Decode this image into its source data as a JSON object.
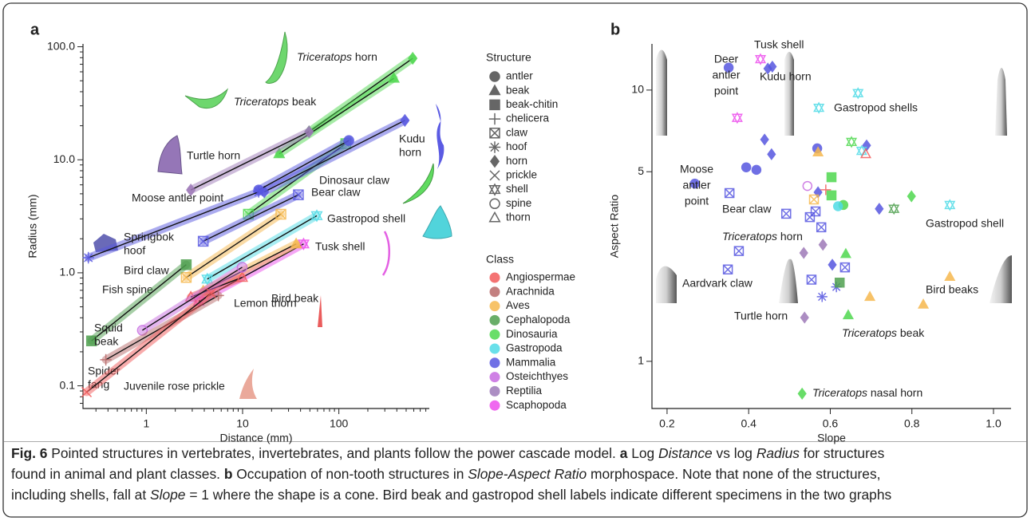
{
  "chart_data": [
    {
      "type": "scatter-fit",
      "panel": "a",
      "x_label": "Distance (mm)",
      "y_label": "Radius (mm)",
      "xscale": "log",
      "yscale": "log",
      "xlim": [
        0.22,
        870
      ],
      "ylim": [
        0.063,
        106
      ],
      "xticks": [
        1,
        10,
        100
      ],
      "xminorticks": [
        0.3,
        0.4,
        0.5,
        0.6,
        0.7,
        0.8,
        0.9,
        2,
        3,
        4,
        5,
        6,
        7,
        8,
        9,
        20,
        30,
        40,
        50,
        60,
        70,
        80,
        90,
        200,
        300,
        400,
        500,
        600,
        700,
        800
      ],
      "yticks": [
        {
          "value": 0.1,
          "label": "0.1"
        },
        {
          "value": 1,
          "label": "1.0"
        },
        {
          "value": 10,
          "label": "10.0"
        },
        {
          "value": 100,
          "label": "100.0"
        }
      ],
      "yminorticks": [
        0.07,
        0.08,
        0.09,
        0.2,
        0.3,
        0.4,
        0.5,
        0.6,
        0.7,
        0.8,
        0.9,
        2,
        3,
        4,
        5,
        6,
        7,
        8,
        9,
        20,
        30,
        40,
        50,
        60,
        70,
        80,
        90
      ],
      "structure_legend_title": "Structure",
      "structures": [
        {
          "name": "antler",
          "marker": "circle"
        },
        {
          "name": "beak",
          "marker": "triangle"
        },
        {
          "name": "beak-chitin",
          "marker": "square"
        },
        {
          "name": "chelicera",
          "marker": "plus"
        },
        {
          "name": "claw",
          "marker": "square-x"
        },
        {
          "name": "hoof",
          "marker": "asterisk"
        },
        {
          "name": "horn",
          "marker": "diamond"
        },
        {
          "name": "prickle",
          "marker": "x"
        },
        {
          "name": "shell",
          "marker": "hexagram"
        },
        {
          "name": "spine",
          "marker": "circle-open"
        },
        {
          "name": "thorn",
          "marker": "triangle-open"
        }
      ],
      "class_legend_title": "Class",
      "classes": [
        {
          "name": "Angiospermae",
          "color": "#f25a5a"
        },
        {
          "name": "Arachnida",
          "color": "#b86a6a"
        },
        {
          "name": "Aves",
          "color": "#f6b84e"
        },
        {
          "name": "Cephalopoda",
          "color": "#4fa04f"
        },
        {
          "name": "Dinosauria",
          "color": "#4fd84f"
        },
        {
          "name": "Gastropoda",
          "color": "#4fdbe6"
        },
        {
          "name": "Mammalia",
          "color": "#5757e0"
        },
        {
          "name": "Osteichthyes",
          "color": "#c76be0"
        },
        {
          "name": "Reptilia",
          "color": "#9e7ab8"
        },
        {
          "name": "Scaphopoda",
          "color": "#ec4fec"
        }
      ],
      "specimens": [
        {
          "label": [
            [
              {
                "text": "Triceratops",
                "italic": true
              },
              {
                "text": " horn"
              }
            ]
          ],
          "class": "Dinosauria",
          "structure": "horn",
          "x": [
            49,
            585
          ],
          "y": [
            17.7,
            79
          ]
        },
        {
          "label": [
            [
              {
                "text": "Triceratops",
                "italic": true
              },
              {
                "text": " beak"
              }
            ]
          ],
          "class": "Dinosauria",
          "structure": "beak",
          "x": [
            24,
            372
          ],
          "y": [
            11.3,
            52.6
          ]
        },
        {
          "label": [
            "Dinosaur claw"
          ],
          "class": "Dinosauria",
          "structure": "claw",
          "x": [
            11.5,
            118
          ],
          "y": [
            3.3,
            13.9
          ]
        },
        {
          "label": [
            "Turtle horn"
          ],
          "class": "Reptilia",
          "structure": "horn",
          "x": [
            2.9,
            49
          ],
          "y": [
            5.4,
            17.7
          ]
        },
        {
          "label": [
            "Kudu",
            "horn"
          ],
          "class": "Mammalia",
          "structure": "horn",
          "x": [
            16.8,
            485
          ],
          "y": [
            5.2,
            22.3
          ]
        },
        {
          "label": [
            "Moose antler point"
          ],
          "class": "Mammalia",
          "structure": "antler",
          "x": [
            14.7,
            127
          ],
          "y": [
            5.4,
            14.8
          ]
        },
        {
          "label": [
            "Bear claw"
          ],
          "class": "Mammalia",
          "structure": "claw",
          "x": [
            3.9,
            38
          ],
          "y": [
            1.9,
            4.9
          ]
        },
        {
          "label": [
            "Springbok",
            "hoof"
          ],
          "class": "Mammalia",
          "structure": "hoof",
          "x": [
            0.25,
            14.7
          ],
          "y": [
            1.36,
            5.2
          ]
        },
        {
          "label": [
            "Gastropod shell"
          ],
          "class": "Gastropoda",
          "structure": "shell",
          "x": [
            4.3,
            59
          ],
          "y": [
            0.88,
            3.2
          ]
        },
        {
          "label": [
            "Tusk shell"
          ],
          "class": "Scaphopoda",
          "structure": "shell",
          "x": [
            3.5,
            43
          ],
          "y": [
            0.56,
            1.8
          ]
        },
        {
          "label": [
            "Bird beak"
          ],
          "class": "Aves",
          "structure": "beak",
          "x": [
            3.9,
            36
          ],
          "y": [
            0.69,
            1.8
          ]
        },
        {
          "label": [
            "Bird claw"
          ],
          "class": "Aves",
          "structure": "claw",
          "x": [
            2.6,
            25
          ],
          "y": [
            0.91,
            3.3
          ]
        },
        {
          "label": [
            "Lemon thorn"
          ],
          "class": "Angiospermae",
          "structure": "thorn",
          "x": [
            2.9,
            9.9
          ],
          "y": [
            0.61,
            0.91
          ]
        },
        {
          "label": [
            "Fish spine"
          ],
          "class": "Osteichthyes",
          "structure": "spine",
          "x": [
            0.91,
            9.9
          ],
          "y": [
            0.31,
            1.12
          ]
        },
        {
          "label": [
            "Squid",
            "beak"
          ],
          "class": "Cephalopoda",
          "structure": "beak-chitin",
          "x": [
            0.27,
            2.6
          ],
          "y": [
            0.25,
            1.18
          ]
        },
        {
          "label": [
            "Spider",
            "fang"
          ],
          "class": "Arachnida",
          "structure": "chelicera",
          "x": [
            0.38,
            5.6
          ],
          "y": [
            0.17,
            0.63
          ]
        },
        {
          "label": [
            "Juvenile rose prickle"
          ],
          "class": "Angiospermae",
          "structure": "prickle",
          "x": [
            0.24,
            4.7
          ],
          "y": [
            0.088,
            0.66
          ]
        }
      ]
    },
    {
      "type": "scatter",
      "panel": "b",
      "x_label": "Slope",
      "y_label": "Aspect Ratio",
      "xscale": "linear",
      "yscale": "log",
      "xlim": [
        0.163,
        1.043
      ],
      "ylim": [
        0.67,
        14.8
      ],
      "xticks": [
        0.2,
        0.4,
        0.6,
        0.8,
        {
          "value": 1,
          "label": "1.0"
        }
      ],
      "yticks": [
        1,
        5,
        10
      ],
      "points": [
        {
          "class": "Mammalia",
          "structure": "antler",
          "x": 0.351,
          "y": 12.1
        },
        {
          "class": "Mammalia",
          "structure": "horn",
          "x": 0.447,
          "y": 12.0
        },
        {
          "class": "Mammalia",
          "structure": "horn",
          "x": 0.458,
          "y": 12.2
        },
        {
          "class": "Mammalia",
          "structure": "antler",
          "x": 0.394,
          "y": 5.19
        },
        {
          "class": "Mammalia",
          "structure": "antler",
          "x": 0.419,
          "y": 5.08
        },
        {
          "class": "Mammalia",
          "structure": "antler",
          "x": 0.268,
          "y": 4.52
        },
        {
          "class": "Mammalia",
          "structure": "horn",
          "x": 0.439,
          "y": 6.57
        },
        {
          "class": "Mammalia",
          "structure": "horn",
          "x": 0.456,
          "y": 5.8
        },
        {
          "class": "Mammalia",
          "structure": "antler",
          "x": 0.568,
          "y": 6.1
        },
        {
          "class": "Mammalia",
          "structure": "horn",
          "x": 0.689,
          "y": 6.25
        },
        {
          "class": "Mammalia",
          "structure": "claw",
          "x": 0.353,
          "y": 4.17
        },
        {
          "class": "Mammalia",
          "structure": "claw",
          "x": 0.492,
          "y": 3.5
        },
        {
          "class": "Mammalia",
          "structure": "claw",
          "x": 0.55,
          "y": 3.4
        },
        {
          "class": "Mammalia",
          "structure": "claw",
          "x": 0.564,
          "y": 3.57
        },
        {
          "class": "Mammalia",
          "structure": "claw",
          "x": 0.578,
          "y": 3.12
        },
        {
          "class": "Mammalia",
          "structure": "claw",
          "x": 0.376,
          "y": 2.55
        },
        {
          "class": "Mammalia",
          "structure": "claw",
          "x": 0.636,
          "y": 2.22
        },
        {
          "class": "Mammalia",
          "structure": "claw",
          "x": 0.349,
          "y": 2.18
        },
        {
          "class": "Mammalia",
          "structure": "claw",
          "x": 0.554,
          "y": 2.0
        },
        {
          "class": "Mammalia",
          "structure": "horn",
          "x": 0.57,
          "y": 4.2
        },
        {
          "class": "Mammalia",
          "structure": "horn",
          "x": 0.72,
          "y": 3.65
        },
        {
          "class": "Mammalia",
          "structure": "horn",
          "x": 0.605,
          "y": 2.27
        },
        {
          "class": "Mammalia",
          "structure": "hoof",
          "x": 0.58,
          "y": 1.73
        },
        {
          "class": "Mammalia",
          "structure": "hoof",
          "x": 0.615,
          "y": 1.88
        },
        {
          "class": "Aves",
          "structure": "beak",
          "x": 0.57,
          "y": 5.9
        },
        {
          "class": "Aves",
          "structure": "claw",
          "x": 0.56,
          "y": 3.95
        },
        {
          "class": "Aves",
          "structure": "beak",
          "x": 0.697,
          "y": 1.73
        },
        {
          "class": "Aves",
          "structure": "beak",
          "x": 0.828,
          "y": 1.62
        },
        {
          "class": "Aves",
          "structure": "beak",
          "x": 0.893,
          "y": 2.05
        },
        {
          "class": "Dinosauria",
          "structure": "shell",
          "x": 0.652,
          "y": 6.44
        },
        {
          "class": "Dinosauria",
          "structure": "beak-chitin",
          "x": 0.603,
          "y": 4.77
        },
        {
          "class": "Dinosauria",
          "structure": "beak-chitin",
          "x": 0.603,
          "y": 4.09
        },
        {
          "class": "Dinosauria",
          "structure": "antler",
          "x": 0.632,
          "y": 3.77
        },
        {
          "class": "Dinosauria",
          "structure": "beak",
          "x": 0.638,
          "y": 2.49
        },
        {
          "class": "Dinosauria",
          "structure": "beak",
          "x": 0.644,
          "y": 1.48
        },
        {
          "class": "Dinosauria",
          "structure": "horn",
          "x": 0.799,
          "y": 4.06
        },
        {
          "class": "Dinosauria",
          "structure": "horn",
          "x": 0.531,
          "y": 0.76
        },
        {
          "class": "Gastropoda",
          "structure": "shell",
          "x": 0.668,
          "y": 9.74
        },
        {
          "class": "Gastropoda",
          "structure": "shell",
          "x": 0.572,
          "y": 8.6
        },
        {
          "class": "Gastropoda",
          "structure": "shell",
          "x": 0.677,
          "y": 5.97
        },
        {
          "class": "Gastropoda",
          "structure": "shell",
          "x": 0.893,
          "y": 3.77
        },
        {
          "class": "Gastropoda",
          "structure": "antler",
          "x": 0.619,
          "y": 3.73
        },
        {
          "class": "Scaphopoda",
          "structure": "shell",
          "x": 0.429,
          "y": 13.0
        },
        {
          "class": "Scaphopoda",
          "structure": "shell",
          "x": 0.372,
          "y": 7.9
        },
        {
          "class": "Reptilia",
          "structure": "horn",
          "x": 0.582,
          "y": 2.69
        },
        {
          "class": "Reptilia",
          "structure": "horn",
          "x": 0.535,
          "y": 2.51
        },
        {
          "class": "Reptilia",
          "structure": "horn",
          "x": 0.537,
          "y": 1.45
        },
        {
          "class": "Cephalopoda",
          "structure": "beak-chitin",
          "x": 0.623,
          "y": 1.95
        },
        {
          "class": "Cephalopoda",
          "structure": "shell",
          "x": 0.756,
          "y": 3.65
        },
        {
          "class": "Angiospermae",
          "structure": "thorn",
          "x": 0.687,
          "y": 5.81
        },
        {
          "class": "Angiospermae",
          "structure": "chelicera",
          "x": 0.589,
          "y": 4.29
        },
        {
          "class": "Osteichthyes",
          "structure": "spine",
          "x": 0.544,
          "y": 4.43
        }
      ],
      "annotations": [
        {
          "lines": [
            "Tusk shell"
          ],
          "class": "Scaphopoda"
        },
        {
          "lines": [
            "Deer",
            "antler",
            "point"
          ],
          "class": "Mammalia"
        },
        {
          "lines": [
            "Kudu horn"
          ],
          "class": "Mammalia"
        },
        {
          "lines": [
            "Gastropod shells"
          ],
          "class": "Gastropoda"
        },
        {
          "lines": [
            "Moose",
            "antler",
            "point"
          ],
          "class": "Mammalia"
        },
        {
          "lines": [
            "Bear claw"
          ],
          "class": "Mammalia"
        },
        {
          "lines": [
            "Gastropod shell"
          ],
          "class": "Gastropoda"
        },
        {
          "lines": [
            [
              {
                "text": "Triceratops",
                "italic": true
              },
              {
                "text": " horn"
              }
            ]
          ],
          "class": "Dinosauria"
        },
        {
          "lines": [
            "Aardvark claw"
          ],
          "class": "Mammalia"
        },
        {
          "lines": [
            "Bird beaks"
          ],
          "class": "Aves"
        },
        {
          "lines": [
            "Turtle horn"
          ],
          "class": "Reptilia"
        },
        {
          "lines": [
            [
              {
                "text": "Triceratops",
                "italic": true
              },
              {
                "text": " beak"
              }
            ]
          ],
          "class": "Dinosauria"
        },
        {
          "lines": [
            [
              {
                "text": "Triceratops",
                "italic": true
              },
              {
                "text": " nasal horn"
              }
            ]
          ],
          "class": "Dinosauria"
        }
      ]
    }
  ],
  "caption": {
    "lines": [
      [
        {
          "text": "Fig. 6",
          "bold": true
        },
        {
          "text": " Pointed structures in vertebrates, invertebrates, and plants follow the power cascade model. "
        },
        {
          "text": "a",
          "bold": true
        },
        {
          "text": " Log "
        },
        {
          "text": "Distance",
          "italic": true
        },
        {
          "text": " vs log "
        },
        {
          "text": "Radius",
          "italic": true
        },
        {
          "text": " for structures"
        }
      ],
      [
        {
          "text": "found in animal and plant classes. "
        },
        {
          "text": "b",
          "bold": true
        },
        {
          "text": " Occupation of non-tooth structures in "
        },
        {
          "text": "Slope-Aspect Ratio",
          "italic": true
        },
        {
          "text": " morphospace. Note that none of the structures,"
        }
      ],
      [
        {
          "text": "including shells, fall at "
        },
        {
          "text": "Slope",
          "italic": true
        },
        {
          "text": " = 1 where the shape is a cone. Bird beak and gastropod shell labels indicate different specimens in the two graphs"
        }
      ]
    ]
  }
}
